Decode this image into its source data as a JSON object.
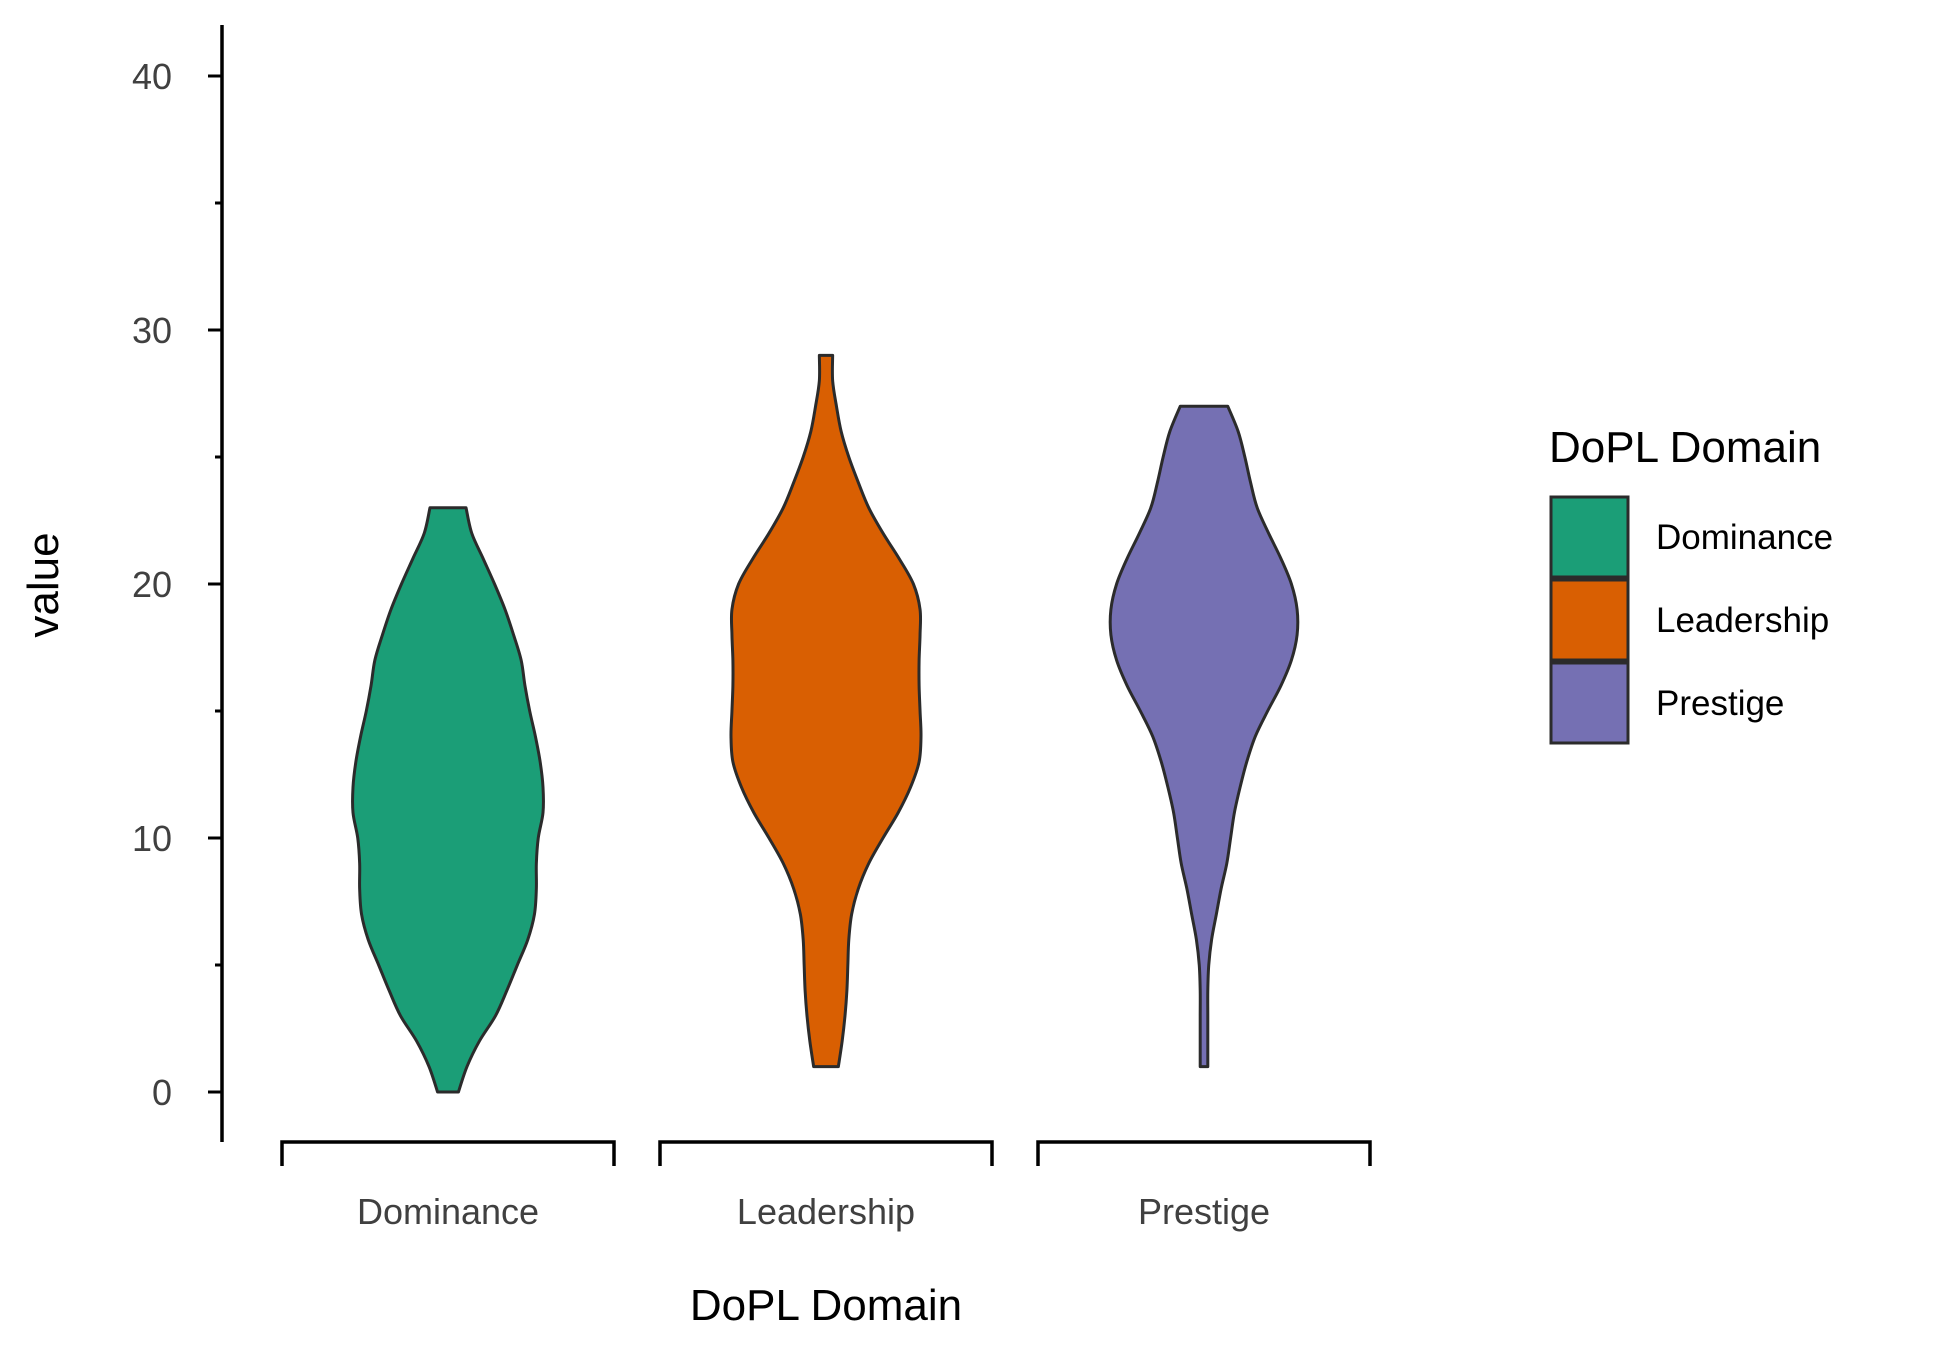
{
  "chart_data": {
    "type": "violin",
    "xlabel": "DoPL Domain",
    "ylabel": "value",
    "ylim": [
      -2,
      42
    ],
    "yticks": [
      0,
      10,
      20,
      30,
      40
    ],
    "categories": [
      "Dominance",
      "Leadership",
      "Prestige"
    ],
    "colors": {
      "Dominance": "#1B9E77",
      "Leadership": "#D95F02",
      "Prestige": "#7570B3"
    },
    "legend": {
      "title": "DoPL Domain",
      "position": "right",
      "entries": [
        "Dominance",
        "Leadership",
        "Prestige"
      ]
    },
    "grid": false,
    "series": [
      {
        "name": "Dominance",
        "min": 0,
        "max": 23,
        "density_profile": [
          [
            0,
            0.11
          ],
          [
            1,
            0.2
          ],
          [
            2,
            0.33
          ],
          [
            3,
            0.5
          ],
          [
            4,
            0.62
          ],
          [
            5,
            0.73
          ],
          [
            6,
            0.84
          ],
          [
            7,
            0.91
          ],
          [
            8,
            0.93
          ],
          [
            9,
            0.93
          ],
          [
            10,
            0.95
          ],
          [
            11,
            1.0
          ],
          [
            12,
            1.0
          ],
          [
            13,
            0.97
          ],
          [
            14,
            0.92
          ],
          [
            15,
            0.86
          ],
          [
            16,
            0.81
          ],
          [
            17,
            0.77
          ],
          [
            18,
            0.69
          ],
          [
            19,
            0.6
          ],
          [
            20,
            0.49
          ],
          [
            21,
            0.37
          ],
          [
            22,
            0.25
          ],
          [
            23,
            0.19
          ]
        ]
      },
      {
        "name": "Leadership",
        "min": 1,
        "max": 29,
        "density_profile": [
          [
            1,
            0.13
          ],
          [
            2,
            0.17
          ],
          [
            3,
            0.2
          ],
          [
            4,
            0.22
          ],
          [
            5,
            0.23
          ],
          [
            6,
            0.24
          ],
          [
            7,
            0.27
          ],
          [
            8,
            0.34
          ],
          [
            9,
            0.45
          ],
          [
            10,
            0.6
          ],
          [
            11,
            0.76
          ],
          [
            12,
            0.89
          ],
          [
            13,
            0.98
          ],
          [
            14,
            1.0
          ],
          [
            15,
            0.99
          ],
          [
            16,
            0.98
          ],
          [
            17,
            0.98
          ],
          [
            18,
            0.99
          ],
          [
            19,
            0.99
          ],
          [
            20,
            0.92
          ],
          [
            21,
            0.77
          ],
          [
            22,
            0.6
          ],
          [
            23,
            0.45
          ],
          [
            24,
            0.34
          ],
          [
            25,
            0.24
          ],
          [
            26,
            0.16
          ],
          [
            27,
            0.11
          ],
          [
            28,
            0.07
          ],
          [
            29,
            0.07
          ]
        ]
      },
      {
        "name": "Prestige",
        "min": 1,
        "max": 27,
        "density_profile": [
          [
            1,
            0.04
          ],
          [
            2,
            0.04
          ],
          [
            3,
            0.04
          ],
          [
            4,
            0.04
          ],
          [
            5,
            0.05
          ],
          [
            6,
            0.08
          ],
          [
            7,
            0.13
          ],
          [
            8,
            0.18
          ],
          [
            9,
            0.24
          ],
          [
            10,
            0.28
          ],
          [
            11,
            0.32
          ],
          [
            12,
            0.38
          ],
          [
            13,
            0.45
          ],
          [
            14,
            0.54
          ],
          [
            15,
            0.67
          ],
          [
            16,
            0.81
          ],
          [
            17,
            0.92
          ],
          [
            18,
            0.98
          ],
          [
            19,
            0.98
          ],
          [
            20,
            0.92
          ],
          [
            21,
            0.81
          ],
          [
            22,
            0.68
          ],
          [
            23,
            0.56
          ],
          [
            24,
            0.49
          ],
          [
            25,
            0.43
          ],
          [
            26,
            0.36
          ],
          [
            27,
            0.25
          ]
        ]
      }
    ]
  }
}
